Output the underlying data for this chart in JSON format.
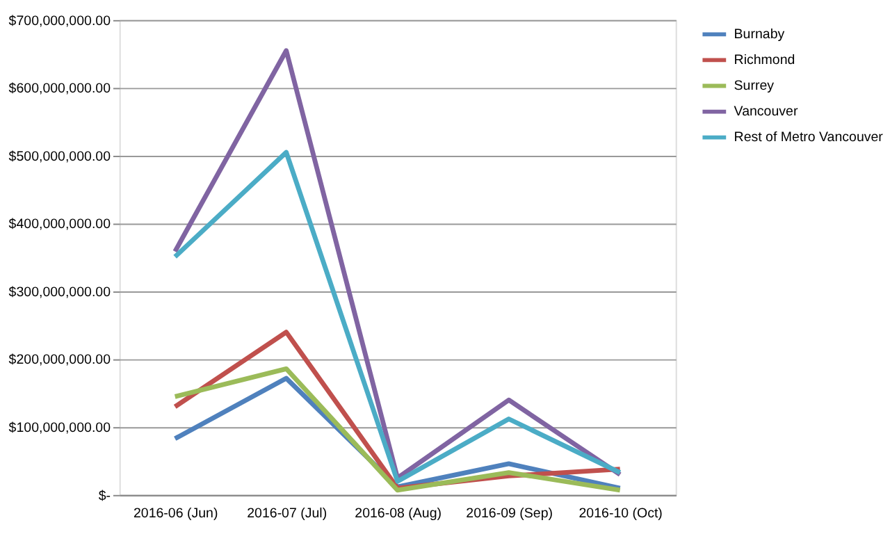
{
  "chart_data": {
    "type": "line",
    "categories": [
      "2016-06 (Jun)",
      "2016-07 (Jul)",
      "2016-08 (Aug)",
      "2016-09 (Sep)",
      "2016-10 (Oct)"
    ],
    "series": [
      {
        "name": "Burnaby",
        "color": "#4f81bd",
        "values": [
          83000000,
          172000000,
          12000000,
          46000000,
          10000000
        ]
      },
      {
        "name": "Richmond",
        "color": "#c0504d",
        "values": [
          130000000,
          240000000,
          10000000,
          28000000,
          38000000
        ]
      },
      {
        "name": "Surrey",
        "color": "#9bbb59",
        "values": [
          145000000,
          186000000,
          7000000,
          33000000,
          7000000
        ]
      },
      {
        "name": "Vancouver",
        "color": "#8064a2",
        "values": [
          359000000,
          655000000,
          25000000,
          140000000,
          30000000
        ]
      },
      {
        "name": "Rest of Metro Vancouver",
        "color": "#4bacc6",
        "values": [
          351000000,
          505000000,
          20000000,
          112000000,
          33000000
        ]
      }
    ],
    "ylim": [
      0,
      700000000
    ],
    "yticks": [
      {
        "value": 0,
        "label": "$-"
      },
      {
        "value": 100000000,
        "label": "$100,000,000.00"
      },
      {
        "value": 200000000,
        "label": "$200,000,000.00"
      },
      {
        "value": 300000000,
        "label": "$300,000,000.00"
      },
      {
        "value": 400000000,
        "label": "$400,000,000.00"
      },
      {
        "value": 500000000,
        "label": "$500,000,000.00"
      },
      {
        "value": 600000000,
        "label": "$600,000,000.00"
      },
      {
        "value": 700000000,
        "label": "$700,000,000.00"
      }
    ],
    "grid": "y",
    "legend": "right",
    "marker": "none",
    "line_style": "solid"
  }
}
